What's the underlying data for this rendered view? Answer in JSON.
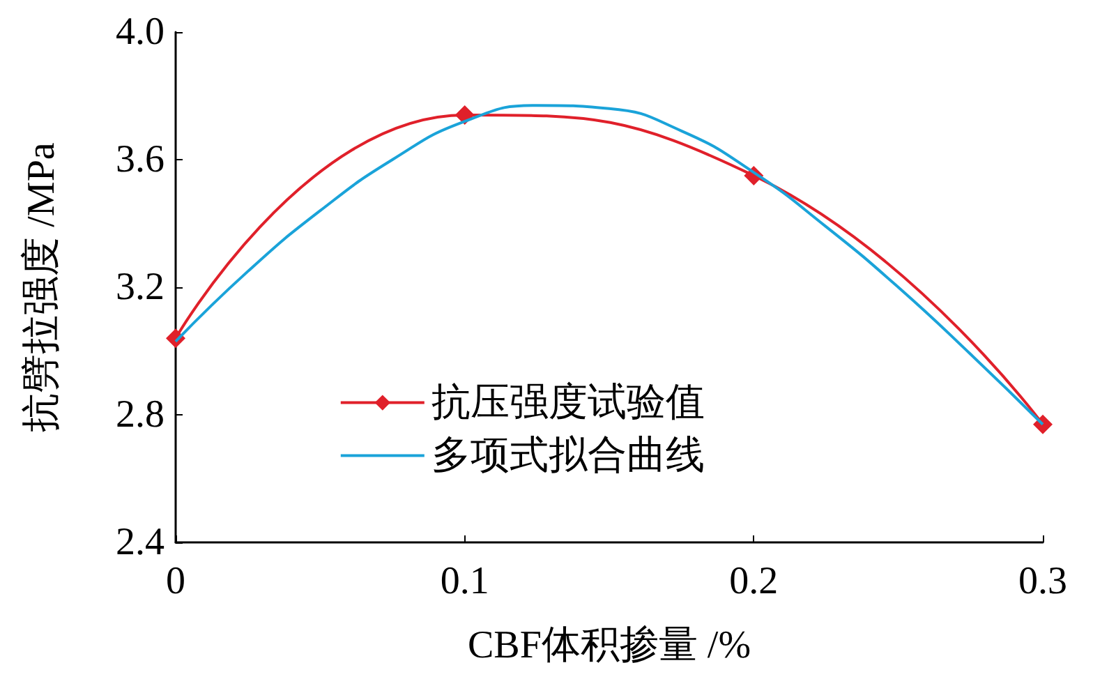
{
  "chart_data": {
    "type": "line",
    "xlabel": "CBF体积掺量 /%",
    "ylabel": "抗劈拉强度 /MPa",
    "x": [
      0,
      0.1,
      0.2,
      0.3
    ],
    "series": [
      {
        "name": "抗压强度试验值",
        "color": "#e0202a",
        "values": [
          3.04,
          3.74,
          3.55,
          2.77
        ],
        "marker": "diamond"
      },
      {
        "name": "多项式拟合曲线",
        "color": "#1aa3d9",
        "marker": "none",
        "x": [
          0,
          0.025,
          0.05,
          0.075,
          0.1,
          0.125,
          0.15,
          0.175,
          0.2,
          0.225,
          0.25,
          0.275,
          0.3
        ],
        "values": [
          3.03,
          3.25,
          3.44,
          3.6,
          3.72,
          3.77,
          3.76,
          3.69,
          3.56,
          3.39,
          3.2,
          2.99,
          2.77
        ]
      }
    ],
    "xlim": [
      0,
      0.3
    ],
    "xticks": [
      0,
      0.1,
      0.2,
      0.3
    ],
    "ylim": [
      2.4,
      4.0
    ],
    "yticks": [
      {
        "value": 2.4,
        "label": "2.4"
      },
      {
        "value": 2.8,
        "label": "2.8"
      },
      {
        "value": 3.2,
        "label": "3.2"
      },
      {
        "value": 3.6,
        "label": "3.6"
      },
      {
        "value": 4.0,
        "label": "4.0"
      }
    ],
    "grid": false,
    "legend": "center"
  }
}
